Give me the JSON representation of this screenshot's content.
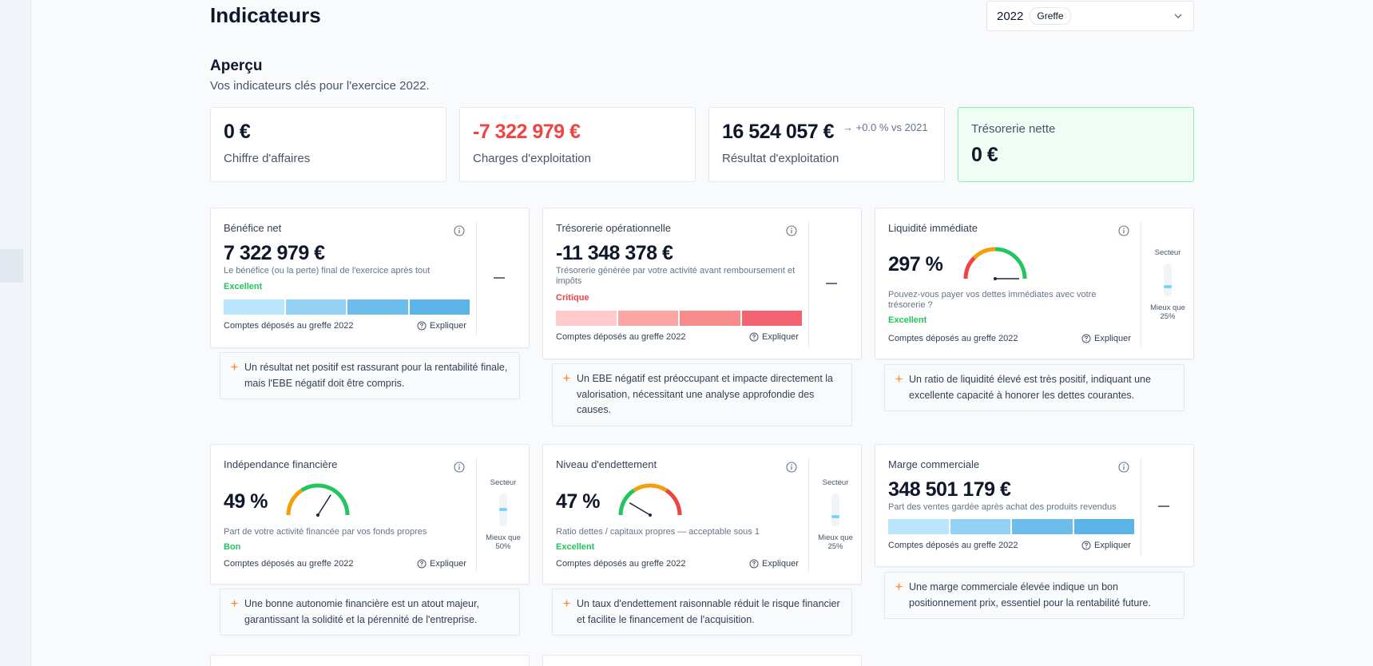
{
  "header": {
    "title": "Indicateurs",
    "year": "2022",
    "source_badge": "Greffe"
  },
  "overview": {
    "title": "Aperçu",
    "subtitle": "Vos indicateurs clés pour l'exercice 2022."
  },
  "kpis": [
    {
      "value": "0 €",
      "label": "Chiffre d'affaires"
    },
    {
      "value": "-7 322 979 €",
      "label": "Charges d'exploitation"
    },
    {
      "value": "16 524 057 €",
      "label": "Résultat d'exploitation",
      "trend": "→ +0.0 % vs 2021"
    },
    {
      "value": "0 €",
      "label": "Trésorerie nette"
    }
  ],
  "colors": {
    "excellent": "#22c55e",
    "critique": "#ef4444",
    "blue_scale": [
      "#bae6fd",
      "#93d1f5",
      "#6cbcec",
      "#5bb3e8"
    ],
    "red_scale": [
      "#fecaca",
      "#fca5a5",
      "#f88b8b",
      "#f26270"
    ]
  },
  "cards": [
    {
      "title": "Bénéfice net",
      "value": "7 322 979 €",
      "description": "Le bénéfice (ou la perte) final de l'exercice après tout",
      "status": "Excellent",
      "source": "Comptes déposés au greffe 2022",
      "explain": "Expliquer",
      "insight": "Un résultat net positif est rassurant pour la rentabilité finale, mais l'EBE négatif doit être compris."
    },
    {
      "title": "Trésorerie opérationnelle",
      "value": "-11 348 378 €",
      "description": "Trésorerie générée par votre activité avant remboursement et impôts",
      "status": "Critique",
      "source": "Comptes déposés au greffe 2022",
      "explain": "Expliquer",
      "insight": "Un EBE négatif est préoccupant et impacte directement la valorisation, nécessitant une analyse approfondie des causes."
    },
    {
      "title": "Liquidité immédiate",
      "value": "297 %",
      "description": "Pouvez-vous payer vos dettes immédiates avec votre trésorerie ?",
      "status": "Excellent",
      "source": "Comptes déposés au greffe 2022",
      "explain": "Expliquer",
      "sector_label": "Secteur",
      "sector_comparison": "Mieux que 25%",
      "sector_level": 0.25,
      "gauge_level": 1.0,
      "insight": "Un ratio de liquidité élevé est très positif, indiquant une excellente capacité à honorer les dettes courantes."
    },
    {
      "title": "Indépendance financière",
      "value": "49 %",
      "description": "Part de votre activité financée par vos fonds propres",
      "status": "Bon",
      "source": "Comptes déposés au greffe 2022",
      "explain": "Expliquer",
      "sector_label": "Secteur",
      "sector_comparison": "Mieux que 50%",
      "sector_level": 0.5,
      "gauge_level": 0.68,
      "insight": "Une bonne autonomie financière est un atout majeur, garantissant la solidité et la pérennité de l'entreprise."
    },
    {
      "title": "Niveau d'endettement",
      "value": "47 %",
      "description": "Ratio dettes / capitaux propres — acceptable sous 1",
      "status": "Excellent",
      "source": "Comptes déposés au greffe 2022",
      "explain": "Expliquer",
      "sector_label": "Secteur",
      "sector_comparison": "Mieux que 25%",
      "sector_level": 0.25,
      "gauge_level": 0.17,
      "insight": "Un taux d'endettement raisonnable réduit le risque financier et facilite le financement de l'acquisition."
    },
    {
      "title": "Marge commerciale",
      "value": "348 501 179 €",
      "description": "Part des ventes gardée après achat des produits revendus",
      "status": "",
      "source": "Comptes déposés au greffe 2022",
      "explain": "Expliquer",
      "insight": "Une marge commerciale élevée indique un bon positionnement prix, essentiel pour la rentabilité future."
    }
  ]
}
